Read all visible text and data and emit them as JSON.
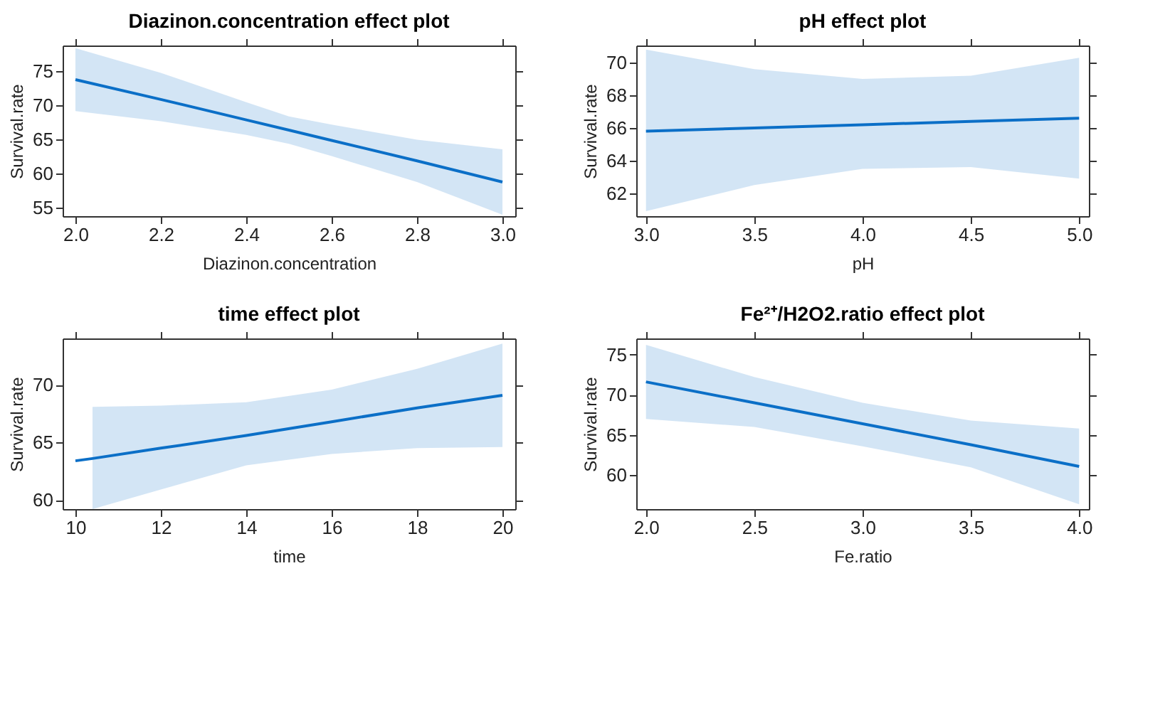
{
  "chart_data": [
    {
      "type": "line",
      "title": "Diazinon.concentration effect plot",
      "xlabel": "Diazinon.concentration",
      "ylabel": "Survival.rate",
      "xlim": [
        1.97,
        3.03
      ],
      "xticks": [
        {
          "value": 2,
          "label": "2.0"
        },
        2.2,
        2.4,
        2.6,
        2.8,
        {
          "value": 3,
          "label": "3.0"
        }
      ],
      "ylim": [
        53.8,
        78.8
      ],
      "yticks": [
        55,
        60,
        65,
        70,
        75
      ],
      "grid": false,
      "series": [
        {
          "color": "#0b6fc7",
          "x": [
            2.0,
            2.2,
            2.4,
            2.5,
            2.6,
            2.8,
            3.0
          ],
          "values": [
            73.8,
            70.9,
            67.9,
            66.4,
            64.9,
            61.9,
            58.8
          ],
          "lower": [
            69.2,
            67.7,
            65.7,
            64.4,
            62.6,
            58.8,
            54.0
          ],
          "upper": [
            78.4,
            74.8,
            70.5,
            68.4,
            67.2,
            65.0,
            63.6
          ]
        }
      ]
    },
    {
      "type": "line",
      "title": "pH effect plot",
      "xlabel": "pH",
      "ylabel": "Survival.rate",
      "xlim": [
        2.955,
        5.045
      ],
      "xticks": [
        {
          "value": 3,
          "label": "3.0"
        },
        3.5,
        {
          "value": 4,
          "label": "4.0"
        },
        4.5,
        {
          "value": 5,
          "label": "5.0"
        }
      ],
      "ylim": [
        60.6,
        71.05
      ],
      "yticks": [
        62,
        64,
        66,
        68,
        70
      ],
      "grid": false,
      "series": [
        {
          "color": "#0b6fc7",
          "x": [
            3.0,
            3.5,
            4.0,
            4.5,
            5.0
          ],
          "values": [
            65.8,
            66.0,
            66.2,
            66.4,
            66.6
          ],
          "lower": [
            60.9,
            62.5,
            63.5,
            63.6,
            62.9
          ],
          "upper": [
            70.8,
            69.6,
            69.0,
            69.2,
            70.3
          ]
        }
      ]
    },
    {
      "type": "line",
      "title": "time effect plot",
      "xlabel": "time",
      "ylabel": "Survival.rate",
      "xlim": [
        9.7,
        20.3
      ],
      "xticks": [
        10,
        12,
        14,
        16,
        18,
        20
      ],
      "ylim": [
        59.2,
        74.05
      ],
      "yticks": [
        60,
        65,
        70
      ],
      "grid": false,
      "series": [
        {
          "color": "#0b6fc7",
          "x": [
            10,
            10.4,
            12,
            14,
            16,
            18,
            20
          ],
          "values": [
            63.4,
            63.6,
            64.5,
            65.6,
            66.8,
            68.0,
            69.1
          ],
          "lower": [
            null,
            59.2,
            60.9,
            63.0,
            64.0,
            64.5,
            64.6
          ],
          "upper": [
            null,
            68.1,
            68.2,
            68.5,
            69.6,
            71.4,
            73.6
          ]
        }
      ]
    },
    {
      "type": "line",
      "title": "Fe²⁺/H2O2.ratio effect plot",
      "xlabel": "Fe.ratio",
      "ylabel": "Survival.rate",
      "xlim": [
        1.955,
        4.045
      ],
      "xticks": [
        {
          "value": 2,
          "label": "2.0"
        },
        2.5,
        {
          "value": 3,
          "label": "3.0"
        },
        3.5,
        {
          "value": 4,
          "label": "4.0"
        }
      ],
      "ylim": [
        55.8,
        77.0
      ],
      "yticks": [
        60,
        65,
        70,
        75
      ],
      "grid": false,
      "series": [
        {
          "color": "#0b6fc7",
          "x": [
            2.0,
            2.5,
            3.0,
            3.5,
            4.0
          ],
          "values": [
            71.6,
            69.0,
            66.4,
            63.8,
            61.1
          ],
          "lower": [
            67.0,
            66.0,
            63.6,
            61.0,
            56.4
          ],
          "upper": [
            76.2,
            72.2,
            69.0,
            66.8,
            65.8
          ]
        }
      ]
    }
  ]
}
